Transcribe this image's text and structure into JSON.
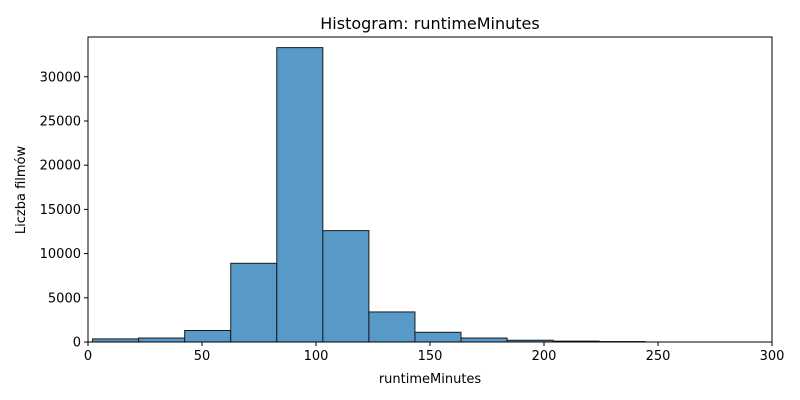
{
  "chart_data": {
    "type": "bar",
    "title": "Histogram: runtimeMinutes",
    "xlabel": "runtimeMinutes",
    "ylabel": "Liczba filmów",
    "xlim": [
      0,
      300
    ],
    "ylim": [
      0,
      34500
    ],
    "x_ticks": [
      0,
      50,
      100,
      150,
      200,
      250,
      300
    ],
    "y_ticks": [
      0,
      5000,
      10000,
      15000,
      20000,
      25000,
      30000
    ],
    "grid": false,
    "bar_color": "#5799c7",
    "edge_color": "#1a1a1a",
    "bins": [
      {
        "start": 2,
        "end": 22.2,
        "value": 350
      },
      {
        "start": 22.2,
        "end": 42.4,
        "value": 450
      },
      {
        "start": 42.4,
        "end": 62.6,
        "value": 1300
      },
      {
        "start": 62.6,
        "end": 82.8,
        "value": 8900
      },
      {
        "start": 82.8,
        "end": 103,
        "value": 33300
      },
      {
        "start": 103,
        "end": 123.2,
        "value": 12600
      },
      {
        "start": 123.2,
        "end": 143.4,
        "value": 3400
      },
      {
        "start": 143.4,
        "end": 163.6,
        "value": 1100
      },
      {
        "start": 163.6,
        "end": 183.8,
        "value": 450
      },
      {
        "start": 183.8,
        "end": 204,
        "value": 200
      },
      {
        "start": 204,
        "end": 224.2,
        "value": 100
      },
      {
        "start": 224.2,
        "end": 244.4,
        "value": 50
      },
      {
        "start": 244.4,
        "end": 264.6,
        "value": 0
      },
      {
        "start": 264.6,
        "end": 284.8,
        "value": 0
      }
    ]
  }
}
